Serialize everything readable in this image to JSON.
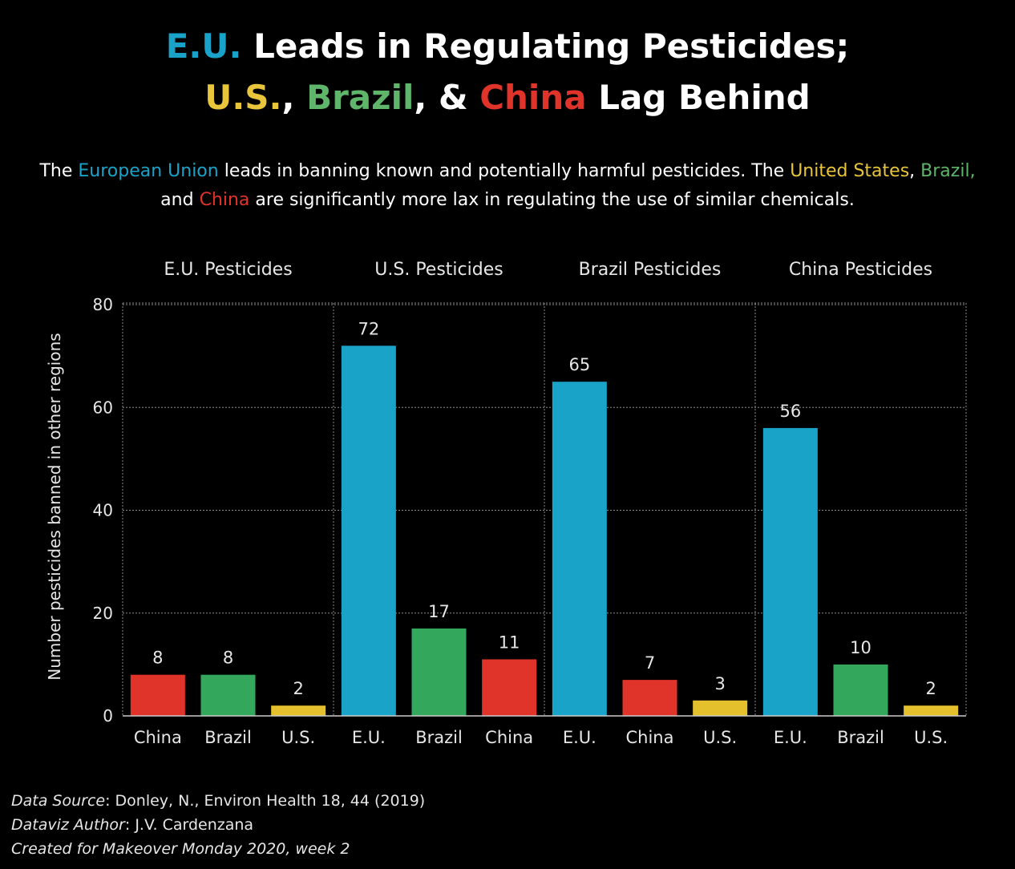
{
  "header": {
    "title_line1": {
      "eu": "E.U.",
      "rest": " Leads in Regulating Pesticides;"
    },
    "title_line2": {
      "us": "U.S.",
      "sep1": ", ",
      "brazil": "Brazil",
      "sep2": ", & ",
      "china": "China",
      "rest": " Lag Behind"
    },
    "subtitle": {
      "p1": "The ",
      "eu": "European Union",
      "p2": " leads in banning known and potentially harmful pesticides. The ",
      "us": "United States",
      "p3": ", ",
      "brazil": "Brazil,",
      "p4": " and ",
      "china": "China",
      "p5": " are significantly more lax in regulating the use of similar chemicals."
    }
  },
  "colors": {
    "E.U.": "#1aa3c8",
    "U.S.": "#e3c02c",
    "Brazil": "#33a85c",
    "China": "#e0332a",
    "grid": "#8a8a8a",
    "text": "#e6e6e6"
  },
  "chart_data": {
    "type": "bar",
    "ylabel": "Number pesticides banned in other regions",
    "ylim": [
      0,
      80
    ],
    "yticks": [
      0,
      20,
      40,
      60,
      80
    ],
    "grid": true,
    "panels": [
      {
        "title": "E.U. Pesticides",
        "categories": [
          "China",
          "Brazil",
          "U.S."
        ],
        "values": [
          8,
          8,
          2
        ]
      },
      {
        "title": "U.S. Pesticides",
        "categories": [
          "E.U.",
          "Brazil",
          "China"
        ],
        "values": [
          72,
          17,
          11
        ]
      },
      {
        "title": "Brazil Pesticides",
        "categories": [
          "E.U.",
          "China",
          "U.S."
        ],
        "values": [
          65,
          7,
          3
        ]
      },
      {
        "title": "China Pesticides",
        "categories": [
          "E.U.",
          "Brazil",
          "U.S."
        ],
        "values": [
          56,
          10,
          2
        ]
      }
    ]
  },
  "footer": {
    "source_label": "Data Source",
    "source_value": ": Donley, N., Environ Health 18, 44 (2019)",
    "author_label": "Dataviz Author",
    "author_value": ": J.V. Cardenzana",
    "created": "Created for Makeover Monday 2020, week 2"
  }
}
